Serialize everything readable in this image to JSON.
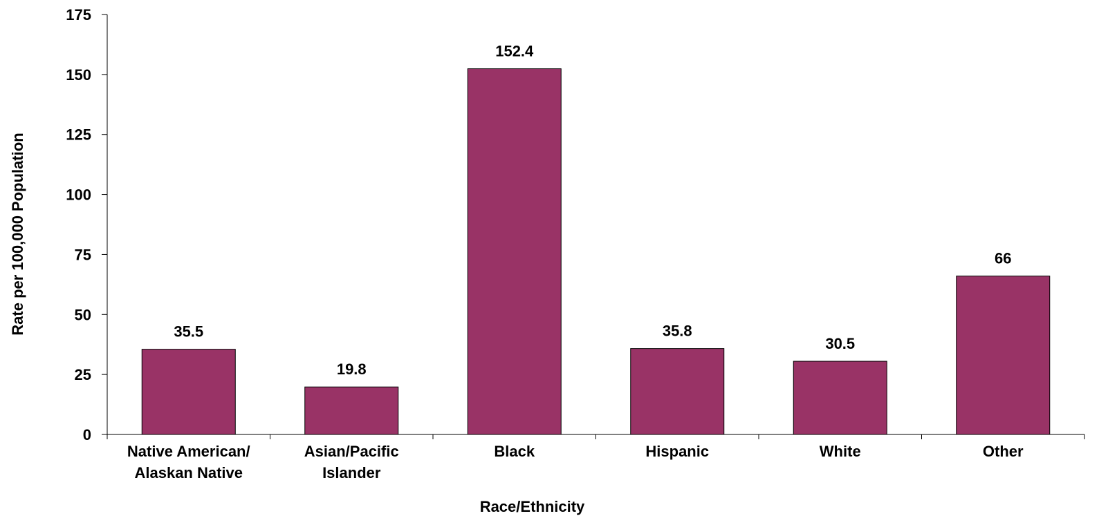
{
  "chart_data": {
    "type": "bar",
    "title": "",
    "xlabel": "Race/Ethnicity",
    "ylabel": "Rate per 100,000 Population",
    "categories": [
      [
        "Native American/",
        "Alaskan Native"
      ],
      [
        "Asian/Pacific",
        "Islander"
      ],
      [
        "Black"
      ],
      [
        "Hispanic"
      ],
      [
        "White"
      ],
      [
        "Other"
      ]
    ],
    "values": [
      35.5,
      19.8,
      152.4,
      35.8,
      30.5,
      66
    ],
    "data_labels": [
      "35.5",
      "19.8",
      "152.4",
      "35.8",
      "30.5",
      "66"
    ],
    "ylim": [
      0,
      175
    ],
    "yticks": [
      0,
      25,
      50,
      75,
      100,
      125,
      150,
      175
    ],
    "grid": false,
    "legend": "none",
    "colors": {
      "bar": "#993366",
      "bar_stroke": "#000000",
      "axis": "#000000"
    }
  }
}
